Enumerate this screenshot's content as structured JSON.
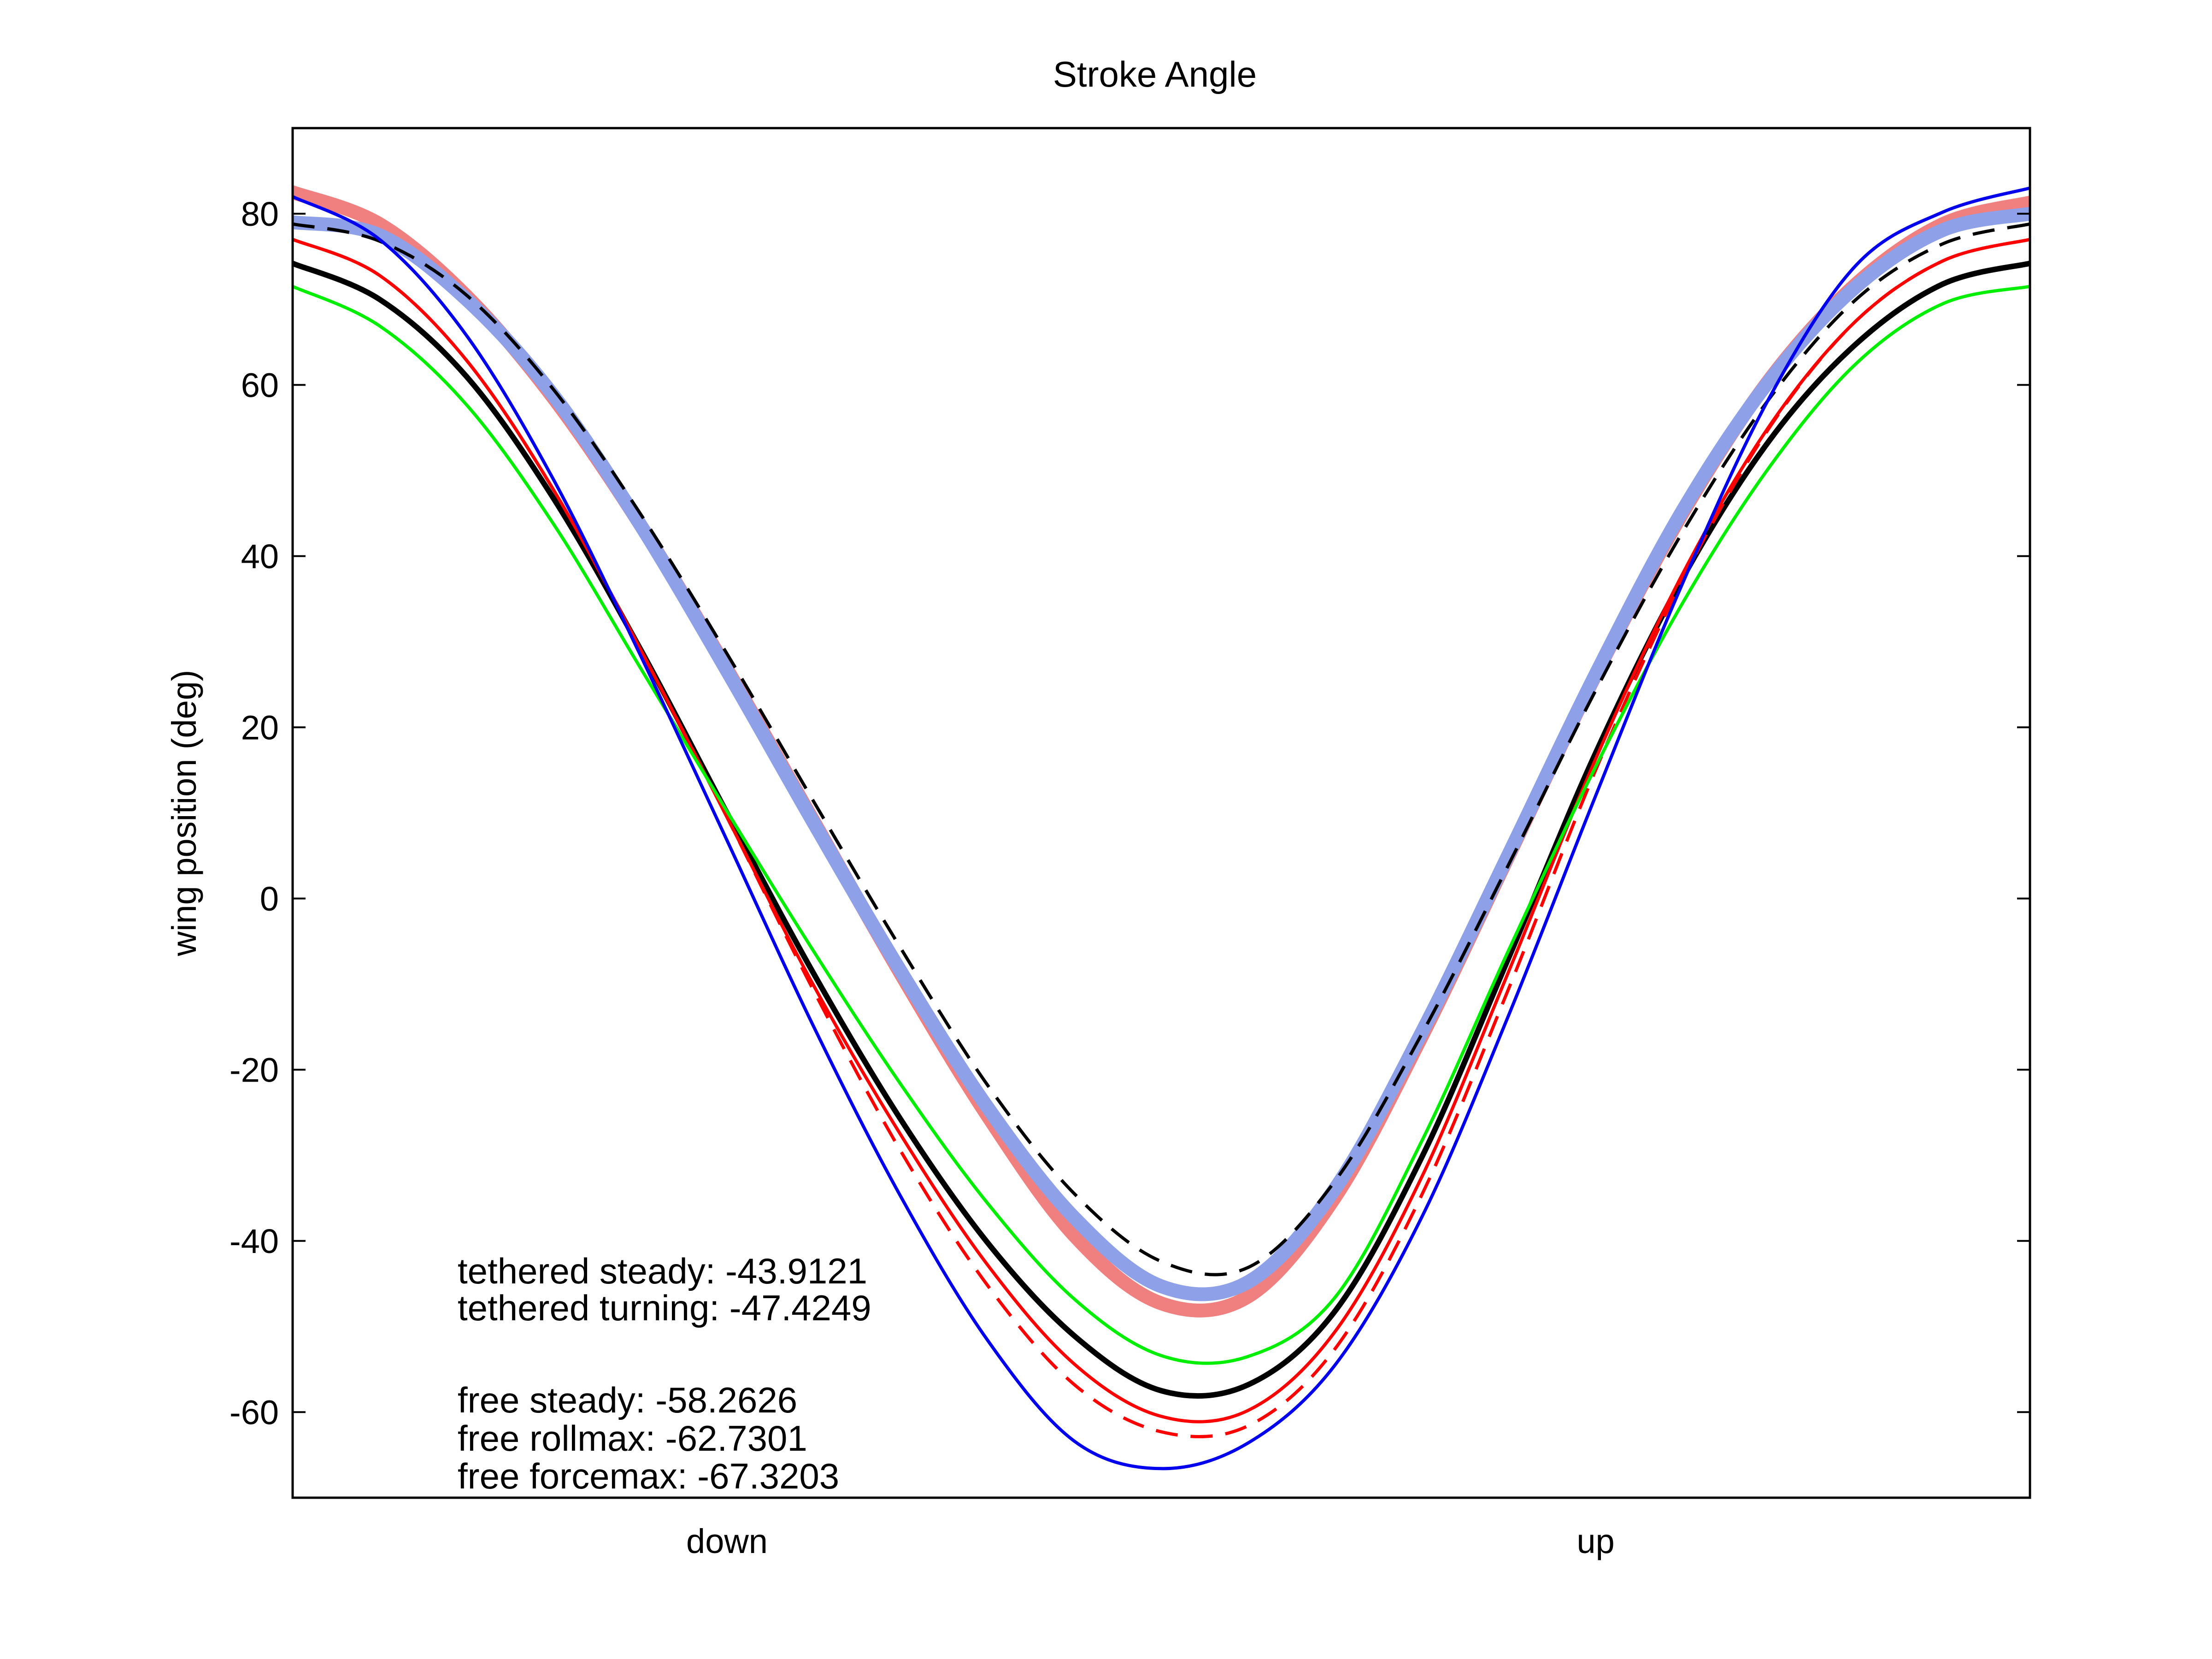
{
  "chart_data": {
    "type": "line",
    "title": "Stroke Angle",
    "xlabel": "",
    "ylabel": "wing position (deg)",
    "x_categories": [
      "down",
      "up"
    ],
    "x_category_positions": [
      0.25,
      0.75
    ],
    "xlim": [
      0,
      1
    ],
    "ylim": [
      -70,
      90
    ],
    "yticks": [
      -60,
      -40,
      -20,
      0,
      20,
      40,
      60,
      80
    ],
    "grid": false,
    "legend": "none",
    "x": [
      0,
      0.05,
      0.1,
      0.15,
      0.2,
      0.25,
      0.3,
      0.35,
      0.4,
      0.45,
      0.5,
      0.55,
      0.6,
      0.65,
      0.7,
      0.75,
      0.8,
      0.85,
      0.9,
      0.95,
      1
    ],
    "series": [
      {
        "values": [
          82.5,
          78.8,
          70.4,
          58.5,
          43.7,
          26.8,
          9.0,
          -8.8,
          -25.4,
          -39.4,
          -47.3,
          -46.5,
          -34.9,
          -16.1,
          5.0,
          26.1,
          45.0,
          60.6,
          71.8,
          78.8,
          81.3
        ],
        "color": "#f08080",
        "style": "band"
      },
      {
        "values": [
          79.0,
          77.5,
          70.0,
          58.8,
          43.7,
          26.6,
          8.8,
          -8.5,
          -24.4,
          -37.3,
          -45.3,
          -44.8,
          -33.9,
          -15.6,
          5.2,
          26.2,
          45.3,
          60.5,
          71.5,
          78.1,
          80.0
        ],
        "color": "#8da0e8",
        "style": "band"
      },
      {
        "values": [
          78.8,
          76.8,
          70.5,
          59.5,
          45.0,
          28.6,
          11.3,
          -5.8,
          -21.8,
          -34.5,
          -42.4,
          -43.1,
          -33.0,
          -15.8,
          4.0,
          24.3,
          42.8,
          58.4,
          70.0,
          76.5,
          78.8
        ],
        "color": "#000000",
        "style": "dashed"
      },
      {
        "values": [
          74.2,
          70.0,
          61.0,
          46.8,
          29.2,
          10.0,
          -8.8,
          -25.8,
          -40.2,
          -51.1,
          -57.5,
          -56.8,
          -48.2,
          -30.2,
          -6.9,
          17.0,
          37.4,
          53.5,
          64.8,
          71.8,
          74.2
        ],
        "color": "#000000",
        "style": "solid-thick"
      },
      {
        "values": [
          77.0,
          72.8,
          62.9,
          47.8,
          29.2,
          9.5,
          -10.2,
          -27.6,
          -42.8,
          -54.4,
          -60.5,
          -59.8,
          -50.6,
          -32.5,
          -8.5,
          16.3,
          37.9,
          55.2,
          67.5,
          74.5,
          77.0
        ],
        "color": "#ff0000",
        "style": "solid"
      },
      {
        "values": [
          77.0,
          72.8,
          62.9,
          47.8,
          29.2,
          9.5,
          -10.8,
          -29.5,
          -45.2,
          -56.8,
          -62.3,
          -61.6,
          -52.6,
          -34.6,
          -10.5,
          15.0,
          37.2,
          55.0,
          67.5,
          74.5,
          77.0
        ],
        "color": "#ff0000",
        "style": "dashed"
      },
      {
        "values": [
          71.5,
          66.9,
          57.7,
          43.8,
          27.0,
          10.2,
          -6.2,
          -21.7,
          -35.6,
          -46.8,
          -53.4,
          -53.5,
          -46.6,
          -28.3,
          -6.0,
          15.4,
          34.5,
          50.4,
          62.5,
          69.5,
          71.5
        ],
        "color": "#00ee00",
        "style": "solid"
      },
      {
        "values": [
          82.0,
          77.0,
          65.8,
          49.0,
          28.5,
          6.8,
          -15.0,
          -34.8,
          -51.6,
          -63.4,
          -66.6,
          -63.6,
          -54.5,
          -37.2,
          -13.6,
          12.0,
          36.8,
          58.5,
          74.0,
          80.2,
          83.0
        ],
        "color": "#0000ee",
        "style": "solid"
      }
    ]
  },
  "annotations": {
    "tethered_steady": "tethered steady: -43.9121",
    "tethered_turning": "tethered turning: -47.4249",
    "free_steady": "free steady: -58.2626",
    "free_rollmax": "free rollmax: -62.7301",
    "free_forcemax": "free forcemax: -67.3203"
  }
}
